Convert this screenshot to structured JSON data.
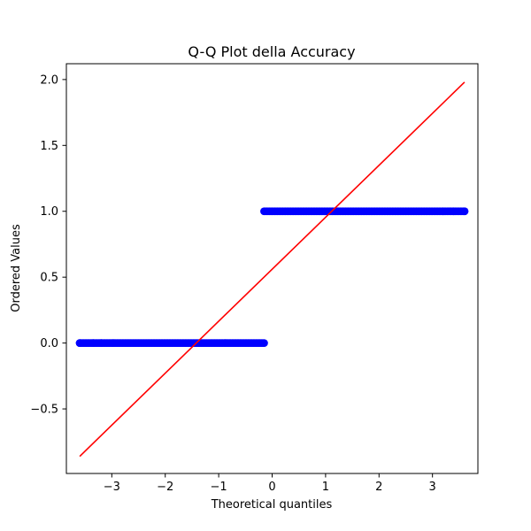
{
  "chart_data": {
    "type": "scatter",
    "title": "Q-Q Plot della Accuracy",
    "xlabel": "Theoretical quantiles",
    "ylabel": "Ordered Values",
    "xlim": [
      -3.85,
      3.85
    ],
    "ylim": [
      -0.99,
      2.12
    ],
    "xticks": [
      -3,
      -2,
      -1,
      0,
      1,
      2,
      3
    ],
    "xtick_labels": [
      "−3",
      "−2",
      "−1",
      "0",
      "1",
      "2",
      "3"
    ],
    "yticks": [
      -0.5,
      0.0,
      0.5,
      1.0,
      1.5,
      2.0
    ],
    "ytick_labels": [
      "−0.5",
      "0.0",
      "0.5",
      "1.0",
      "1.5",
      "2.0"
    ],
    "grid": false,
    "series": [
      {
        "kind": "points",
        "color": "#0000ff",
        "groups": [
          {
            "y": 0.0,
            "x_min": -3.6,
            "x_max": -0.15,
            "isolated_x": [
              -3.6,
              -3.35,
              -3.2
            ]
          },
          {
            "y": 1.0,
            "x_min": -0.15,
            "x_max": 3.6,
            "isolated_x": [
              3.2,
              3.4,
              3.6
            ]
          }
        ]
      },
      {
        "kind": "fit-line",
        "color": "#ff0000",
        "x": [
          -3.6,
          3.6
        ],
        "y": [
          -0.86,
          1.98
        ]
      }
    ]
  }
}
